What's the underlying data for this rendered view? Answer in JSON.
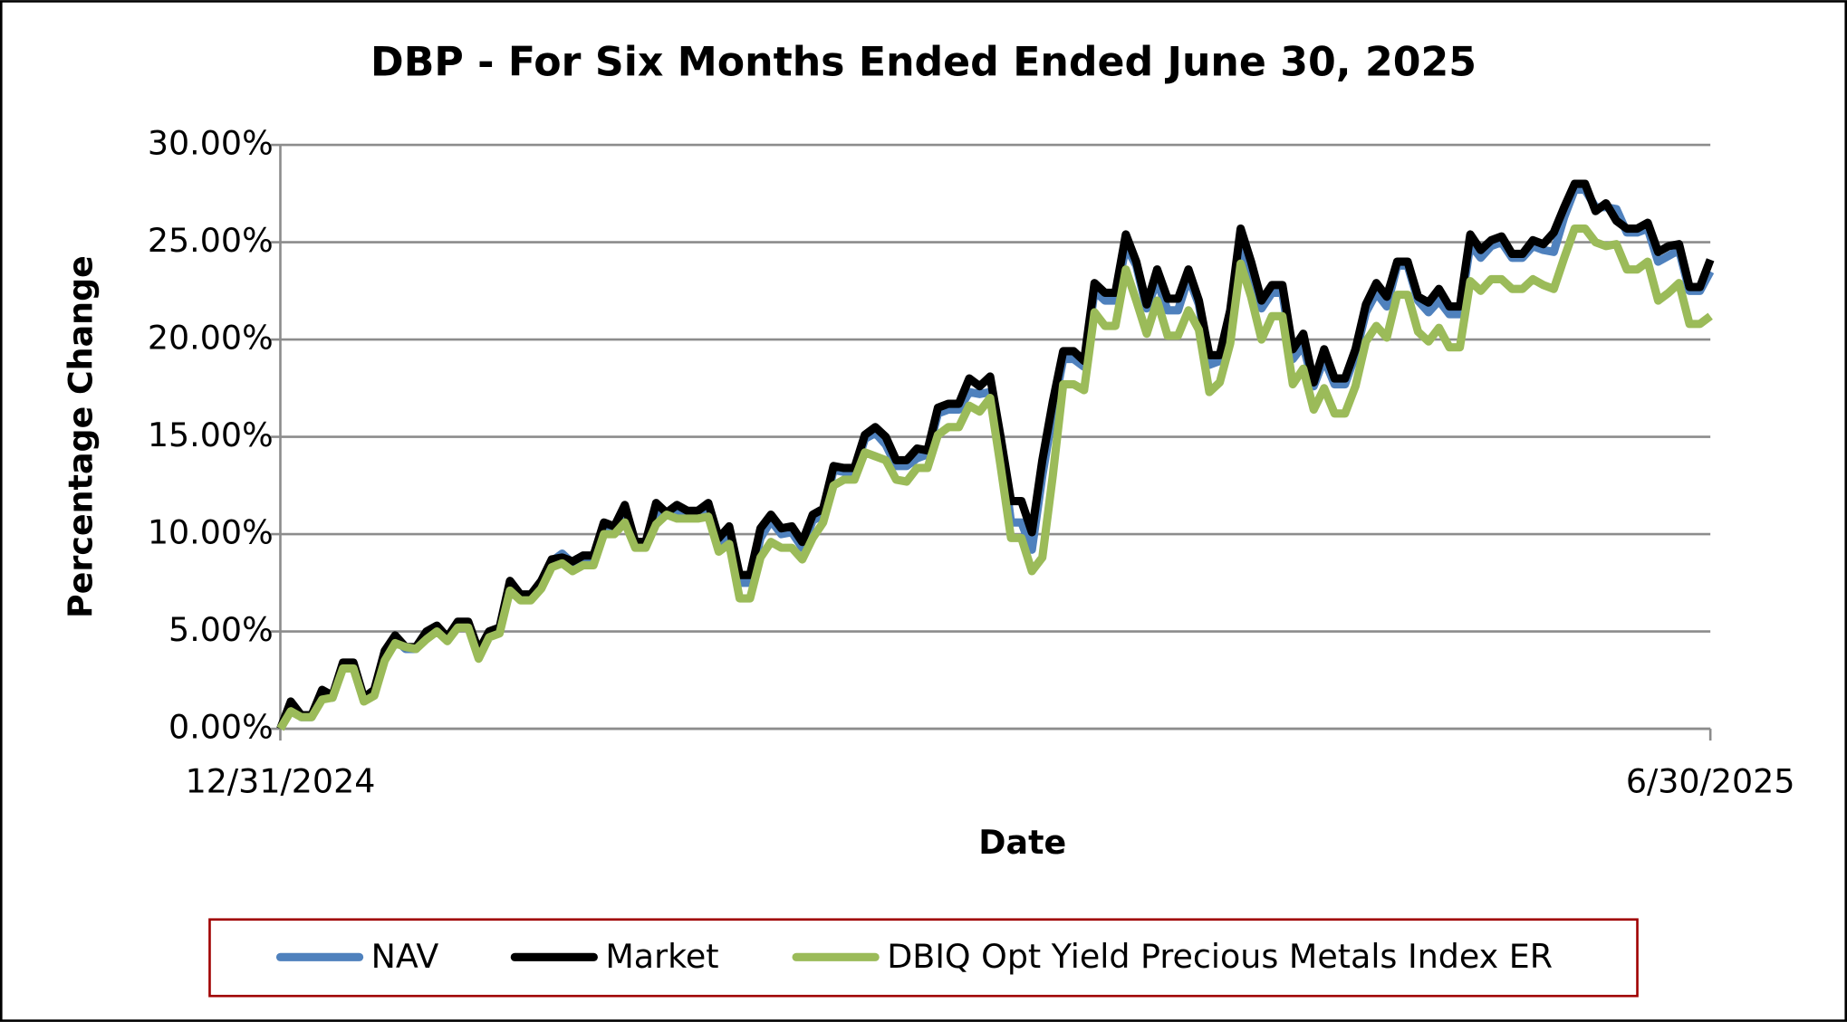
{
  "chart_data": {
    "type": "line",
    "title": "DBP - For Six Months Ended Ended June 30, 2025",
    "xlabel": "Date",
    "ylabel": "Percentage Change",
    "categories": [
      "12/31/2024",
      null,
      null,
      null,
      null,
      null,
      null,
      null,
      null,
      null,
      null,
      null,
      null,
      null,
      null,
      null,
      null,
      null,
      null,
      null,
      null,
      null,
      null,
      null,
      null,
      null,
      null,
      null,
      null,
      null,
      null,
      null,
      null,
      null,
      null,
      null,
      null,
      null,
      null,
      null,
      null,
      null,
      null,
      null,
      null,
      null,
      null,
      null,
      null,
      null,
      null,
      null,
      null,
      null,
      null,
      null,
      null,
      null,
      null,
      null,
      null,
      null,
      null,
      null,
      null,
      null,
      null,
      null,
      null,
      null,
      null,
      null,
      null,
      null,
      null,
      null,
      null,
      null,
      null,
      null,
      null,
      null,
      null,
      null,
      null,
      null,
      null,
      null,
      null,
      null,
      null,
      null,
      null,
      null,
      null,
      null,
      null,
      null,
      null,
      null,
      null,
      null,
      null,
      null,
      null,
      null,
      null,
      null,
      null,
      null,
      null,
      null,
      null,
      null,
      null,
      null,
      null,
      null,
      null,
      null,
      null,
      null,
      null,
      null,
      null,
      null,
      null,
      null,
      null,
      null,
      null,
      null,
      null,
      null,
      null,
      null,
      null,
      "6/30/2025"
    ],
    "series": [
      {
        "name": "NAV",
        "color": "#4f81bd",
        "values": [
          0,
          1.2,
          0.6,
          0.6,
          1.7,
          1.6,
          3.2,
          3.2,
          1.5,
          1.9,
          3.8,
          4.6,
          4.1,
          4.1,
          4.8,
          5.1,
          4.6,
          5.3,
          5.3,
          3.9,
          4.8,
          5.0,
          7.4,
          6.8,
          6.8,
          7.5,
          8.6,
          9.0,
          8.5,
          8.7,
          8.7,
          10.4,
          10.3,
          11.2,
          9.6,
          9.6,
          11.2,
          11.0,
          11.2,
          11.0,
          11.0,
          11.3,
          9.6,
          10.0,
          7.5,
          7.5,
          9.8,
          10.7,
          10.0,
          10.1,
          9.3,
          10.7,
          11.0,
          13.3,
          13.2,
          13.2,
          14.9,
          15.2,
          14.6,
          13.5,
          13.5,
          13.9,
          14.1,
          16.2,
          16.4,
          16.4,
          17.3,
          17.2,
          17.3,
          14.8,
          10.6,
          10.6,
          9.2,
          13.0,
          16.2,
          19.0,
          19.0,
          18.6,
          22.5,
          22.0,
          22.0,
          24.8,
          23.8,
          21.6,
          23.0,
          21.5,
          21.5,
          23.2,
          21.8,
          18.7,
          18.9,
          21.2,
          25.0,
          23.5,
          21.6,
          22.4,
          22.4,
          19.0,
          19.7,
          17.6,
          19.0,
          17.7,
          17.7,
          19.2,
          21.4,
          22.4,
          21.7,
          23.8,
          23.8,
          22.0,
          21.4,
          22.0,
          21.3,
          21.3,
          24.9,
          24.2,
          24.8,
          25.0,
          24.2,
          24.2,
          24.8,
          24.6,
          24.5,
          26.3,
          27.7,
          27.7,
          26.8,
          26.8,
          26.7,
          25.5,
          25.5,
          25.7,
          24.0,
          24.3,
          24.6,
          22.5,
          22.5,
          23.5
        ]
      },
      {
        "name": "Market",
        "color": "#000000",
        "values": [
          0,
          1.4,
          0.7,
          0.7,
          2.0,
          1.7,
          3.4,
          3.4,
          1.6,
          2.0,
          4.0,
          4.8,
          4.2,
          4.2,
          5.0,
          5.3,
          4.7,
          5.5,
          5.5,
          4.0,
          5.0,
          5.2,
          7.6,
          6.9,
          6.9,
          7.6,
          8.7,
          8.8,
          8.6,
          8.9,
          8.9,
          10.6,
          10.4,
          11.5,
          9.6,
          9.6,
          11.6,
          11.1,
          11.5,
          11.2,
          11.2,
          11.6,
          9.8,
          10.4,
          7.9,
          7.9,
          10.3,
          11.0,
          10.3,
          10.4,
          9.6,
          11.0,
          11.3,
          13.5,
          13.4,
          13.4,
          15.1,
          15.5,
          15.0,
          13.8,
          13.8,
          14.4,
          14.3,
          16.5,
          16.7,
          16.7,
          18.0,
          17.6,
          18.1,
          15.0,
          11.7,
          11.7,
          10.1,
          13.8,
          16.8,
          19.4,
          19.4,
          18.9,
          22.9,
          22.4,
          22.4,
          25.4,
          24.0,
          21.8,
          23.6,
          22.1,
          22.1,
          23.6,
          22.0,
          19.2,
          19.2,
          21.5,
          25.7,
          24.0,
          22.0,
          22.8,
          22.8,
          19.5,
          20.3,
          17.8,
          19.5,
          18.0,
          18.0,
          19.5,
          21.8,
          22.9,
          22.2,
          24.0,
          24.0,
          22.2,
          21.9,
          22.6,
          21.7,
          21.7,
          25.4,
          24.6,
          25.1,
          25.3,
          24.4,
          24.4,
          25.1,
          24.9,
          25.5,
          26.8,
          28.0,
          28.0,
          26.6,
          27.0,
          26.1,
          25.7,
          25.7,
          26.0,
          24.5,
          24.8,
          24.9,
          22.7,
          22.7,
          24.1
        ]
      },
      {
        "name": "DBIQ Opt Yield Precious Metals Index ER",
        "color": "#9bbb59",
        "values": [
          0,
          0.9,
          0.6,
          0.6,
          1.5,
          1.6,
          3.1,
          3.1,
          1.4,
          1.7,
          3.5,
          4.4,
          4.2,
          4.1,
          4.6,
          5.0,
          4.5,
          5.2,
          5.2,
          3.6,
          4.7,
          4.9,
          7.1,
          6.6,
          6.6,
          7.2,
          8.3,
          8.5,
          8.1,
          8.4,
          8.4,
          10.0,
          10.0,
          10.6,
          9.3,
          9.3,
          10.5,
          11.0,
          10.8,
          10.8,
          10.8,
          10.9,
          9.1,
          9.5,
          6.7,
          6.7,
          8.8,
          9.6,
          9.3,
          9.3,
          8.7,
          9.8,
          10.6,
          12.5,
          12.8,
          12.8,
          14.2,
          14.0,
          13.8,
          12.8,
          12.7,
          13.4,
          13.4,
          15.1,
          15.5,
          15.5,
          16.6,
          16.3,
          17.0,
          13.5,
          9.8,
          9.8,
          8.1,
          8.8,
          13.0,
          17.7,
          17.7,
          17.4,
          21.4,
          20.7,
          20.7,
          23.6,
          22.0,
          20.3,
          22.0,
          20.2,
          20.2,
          21.5,
          20.5,
          17.3,
          17.8,
          19.8,
          23.9,
          22.2,
          20.0,
          21.2,
          21.2,
          17.7,
          18.5,
          16.4,
          17.5,
          16.2,
          16.2,
          17.6,
          19.9,
          20.7,
          20.1,
          22.3,
          22.3,
          20.4,
          19.9,
          20.6,
          19.6,
          19.6,
          23.0,
          22.5,
          23.1,
          23.1,
          22.6,
          22.6,
          23.1,
          22.8,
          22.6,
          24.2,
          25.7,
          25.7,
          25.0,
          24.8,
          24.9,
          23.6,
          23.6,
          24.0,
          22.0,
          22.4,
          22.9,
          20.8,
          20.8,
          21.2
        ]
      }
    ],
    "ylim": [
      0,
      30
    ],
    "yticks": [
      {
        "value": 0,
        "label": "0.00%"
      },
      {
        "value": 5,
        "label": "5.00%"
      },
      {
        "value": 10,
        "label": "10.00%"
      },
      {
        "value": 15,
        "label": "15.00%"
      },
      {
        "value": 20,
        "label": "20.00%"
      },
      {
        "value": 25,
        "label": "25.00%"
      },
      {
        "value": 30,
        "label": "30.00%"
      }
    ],
    "grid": true,
    "legend": "bottom"
  }
}
